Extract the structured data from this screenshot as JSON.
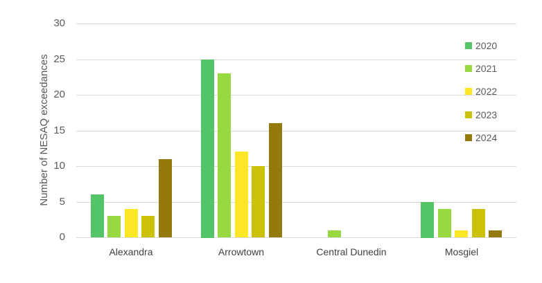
{
  "chart_data": {
    "type": "bar",
    "title": "",
    "xlabel": "",
    "ylabel": "Number of NESAQ exceedances",
    "ylim": [
      0,
      30
    ],
    "yticks": [
      0,
      5,
      10,
      15,
      20,
      25,
      30
    ],
    "grid": true,
    "legend_position": "right-inside",
    "categories": [
      "Alexandra",
      "Arrowtown",
      "Central Dunedin",
      "Mosgiel"
    ],
    "series": [
      {
        "name": "2020",
        "color": "#54c566",
        "values": [
          6,
          25,
          0,
          5
        ]
      },
      {
        "name": "2021",
        "color": "#96d840",
        "values": [
          3,
          23,
          1,
          4
        ]
      },
      {
        "name": "2022",
        "color": "#fde725",
        "values": [
          4,
          12,
          0,
          1
        ]
      },
      {
        "name": "2023",
        "color": "#cdc108",
        "values": [
          3,
          10,
          0,
          4
        ]
      },
      {
        "name": "2024",
        "color": "#947a0c",
        "values": [
          11,
          16,
          0,
          1
        ]
      }
    ]
  }
}
